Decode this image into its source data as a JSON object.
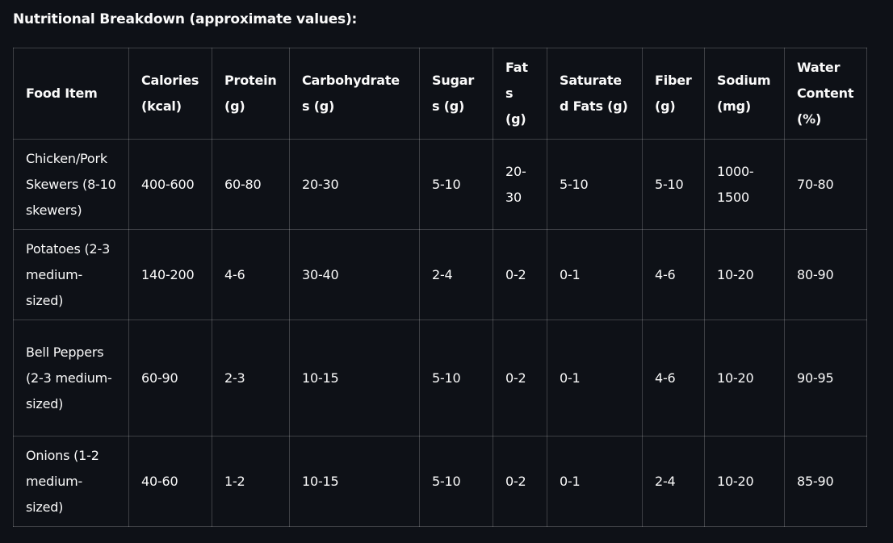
{
  "heading": "Nutritional Breakdown (approximate values):",
  "table": {
    "headers": [
      "Food Item",
      "Calories (kcal)",
      "Protein (g)",
      "Carbohydrates (g)",
      "Sugars (g)",
      "Fats (g)",
      "Saturated Fats (g)",
      "Fiber (g)",
      "Sodium (mg)",
      "Water Content (%)"
    ],
    "rows": [
      [
        "Chicken/Pork Skewers (8-10 skewers)",
        "400-600",
        "60-80",
        "20-30",
        "5-10",
        "20-30",
        "5-10",
        "5-10",
        "1000-1500",
        "70-80"
      ],
      [
        "Potatoes (2-3 medium-sized)",
        "140-200",
        "4-6",
        "30-40",
        "2-4",
        "0-2",
        "0-1",
        "4-6",
        "10-20",
        "80-90"
      ],
      [
        "Bell Peppers (2-3 medium-sized)",
        "60-90",
        "2-3",
        "10-15",
        "5-10",
        "0-2",
        "0-1",
        "4-6",
        "10-20",
        "90-95"
      ],
      [
        "Onions (1-2 medium-sized)",
        "40-60",
        "1-2",
        "10-15",
        "5-10",
        "0-2",
        "0-1",
        "2-4",
        "10-20",
        "85-90"
      ]
    ]
  }
}
